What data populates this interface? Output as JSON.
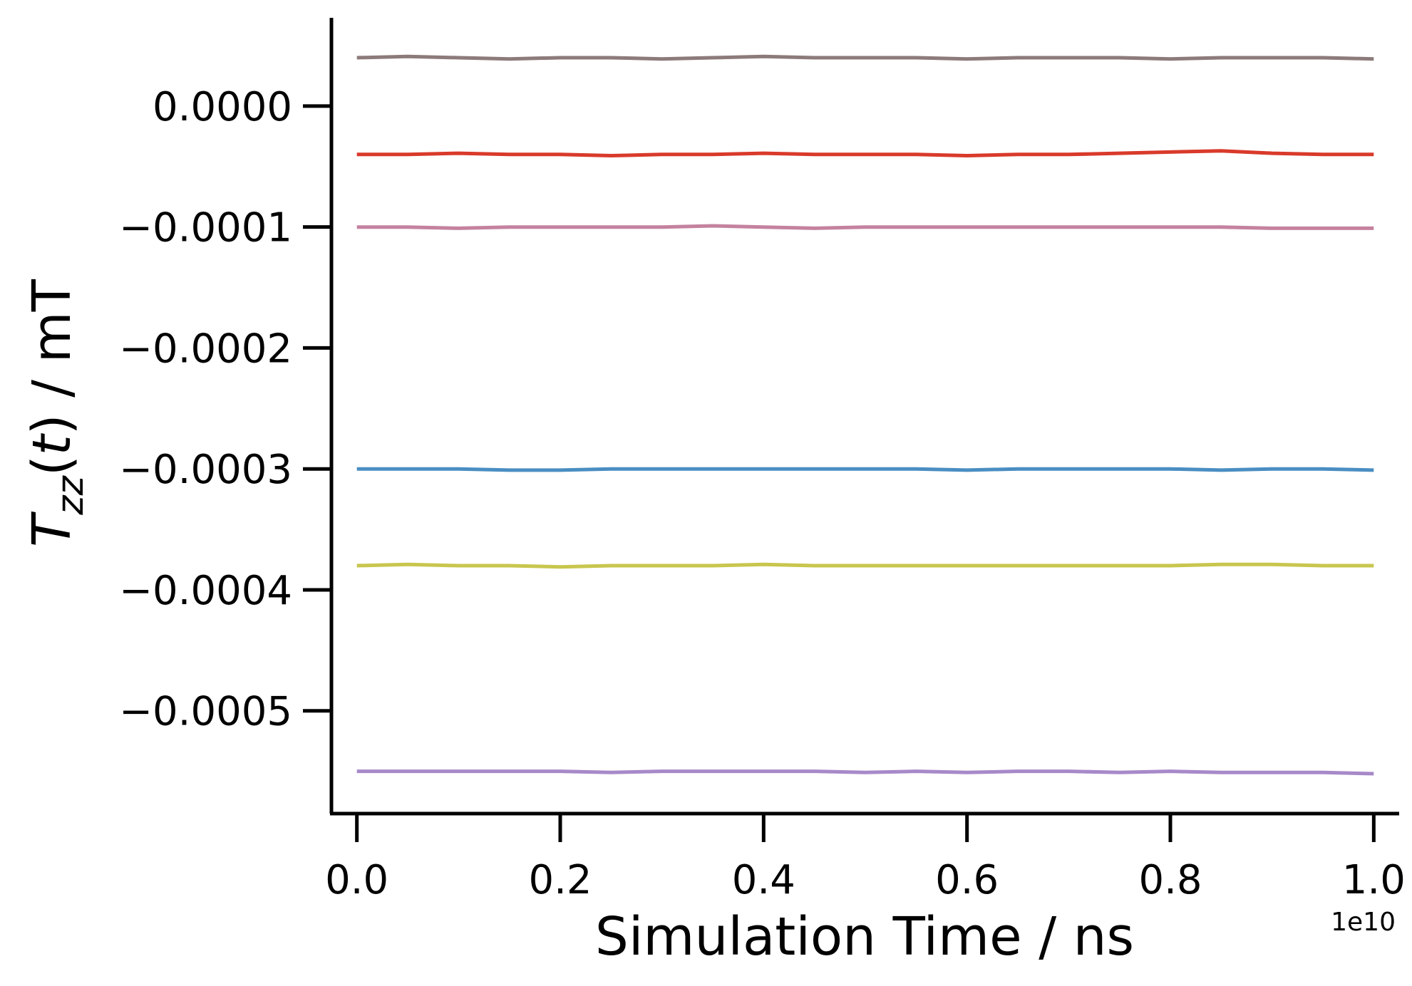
{
  "chart_data": {
    "type": "line",
    "title": "",
    "xlabel": "Simulation Time / ns",
    "ylabel_main": "T",
    "ylabel_sub": "zz",
    "ylabel_rest_open": "(",
    "ylabel_var": "t",
    "ylabel_rest_close": ") / mT",
    "x_offset_label": "1e10",
    "xlim": [
      -0.025,
      1.025
    ],
    "ylim": [
      -0.000585,
      7.3e-05
    ],
    "x_ticks": [
      0.0,
      0.2,
      0.4,
      0.6,
      0.8,
      1.0
    ],
    "x_tick_labels": [
      "0.0",
      "0.2",
      "0.4",
      "0.6",
      "0.8",
      "1.0"
    ],
    "y_ticks": [
      0.0,
      -0.0001,
      -0.0002,
      -0.0003,
      -0.0004,
      -0.0005
    ],
    "y_tick_labels": [
      "0.0000",
      "−0.0001",
      "−0.0002",
      "−0.0003",
      "−0.0004",
      "−0.0005"
    ],
    "x": [
      0.0,
      0.05,
      0.1,
      0.15,
      0.2,
      0.25,
      0.3,
      0.35,
      0.4,
      0.45,
      0.5,
      0.55,
      0.6,
      0.65,
      0.7,
      0.75,
      0.8,
      0.85,
      0.9,
      0.95,
      1.0
    ],
    "series": [
      {
        "color": "#8c7b7a",
        "values": [
          4e-05,
          4.1e-05,
          4e-05,
          3.9e-05,
          4e-05,
          4e-05,
          3.9e-05,
          4e-05,
          4.1e-05,
          4e-05,
          4e-05,
          4e-05,
          3.9e-05,
          4e-05,
          4e-05,
          4e-05,
          3.9e-05,
          4e-05,
          4e-05,
          4e-05,
          3.9e-05
        ]
      },
      {
        "color": "#d93a2b",
        "values": [
          -4e-05,
          -4e-05,
          -3.9e-05,
          -4e-05,
          -4e-05,
          -4.1e-05,
          -4e-05,
          -4e-05,
          -3.9e-05,
          -4e-05,
          -4e-05,
          -4e-05,
          -4.1e-05,
          -4e-05,
          -4e-05,
          -3.9e-05,
          -3.8e-05,
          -3.7e-05,
          -3.9e-05,
          -4e-05,
          -4e-05
        ]
      },
      {
        "color": "#c4829f",
        "values": [
          -0.0001,
          -0.0001,
          -0.000101,
          -0.0001,
          -0.0001,
          -0.0001,
          -0.0001,
          -9.9e-05,
          -0.0001,
          -0.000101,
          -0.0001,
          -0.0001,
          -0.0001,
          -0.0001,
          -0.0001,
          -0.0001,
          -0.0001,
          -0.0001,
          -0.000101,
          -0.000101,
          -0.000101
        ]
      },
      {
        "color": "#4a8ec2",
        "values": [
          -0.0003,
          -0.0003,
          -0.0003,
          -0.000301,
          -0.000301,
          -0.0003,
          -0.0003,
          -0.0003,
          -0.0003,
          -0.0003,
          -0.0003,
          -0.0003,
          -0.000301,
          -0.0003,
          -0.0003,
          -0.0003,
          -0.0003,
          -0.000301,
          -0.0003,
          -0.0003,
          -0.000301
        ]
      },
      {
        "color": "#c8c64e",
        "values": [
          -0.00038,
          -0.000379,
          -0.00038,
          -0.00038,
          -0.000381,
          -0.00038,
          -0.00038,
          -0.00038,
          -0.000379,
          -0.00038,
          -0.00038,
          -0.00038,
          -0.00038,
          -0.00038,
          -0.00038,
          -0.00038,
          -0.00038,
          -0.000379,
          -0.000379,
          -0.00038,
          -0.00038
        ]
      },
      {
        "color": "#a789c9",
        "values": [
          -0.00055,
          -0.00055,
          -0.00055,
          -0.00055,
          -0.00055,
          -0.000551,
          -0.00055,
          -0.00055,
          -0.00055,
          -0.00055,
          -0.000551,
          -0.00055,
          -0.000551,
          -0.00055,
          -0.00055,
          -0.000551,
          -0.00055,
          -0.000551,
          -0.000551,
          -0.000551,
          -0.000552
        ]
      }
    ],
    "grid": false,
    "legend": "none"
  }
}
